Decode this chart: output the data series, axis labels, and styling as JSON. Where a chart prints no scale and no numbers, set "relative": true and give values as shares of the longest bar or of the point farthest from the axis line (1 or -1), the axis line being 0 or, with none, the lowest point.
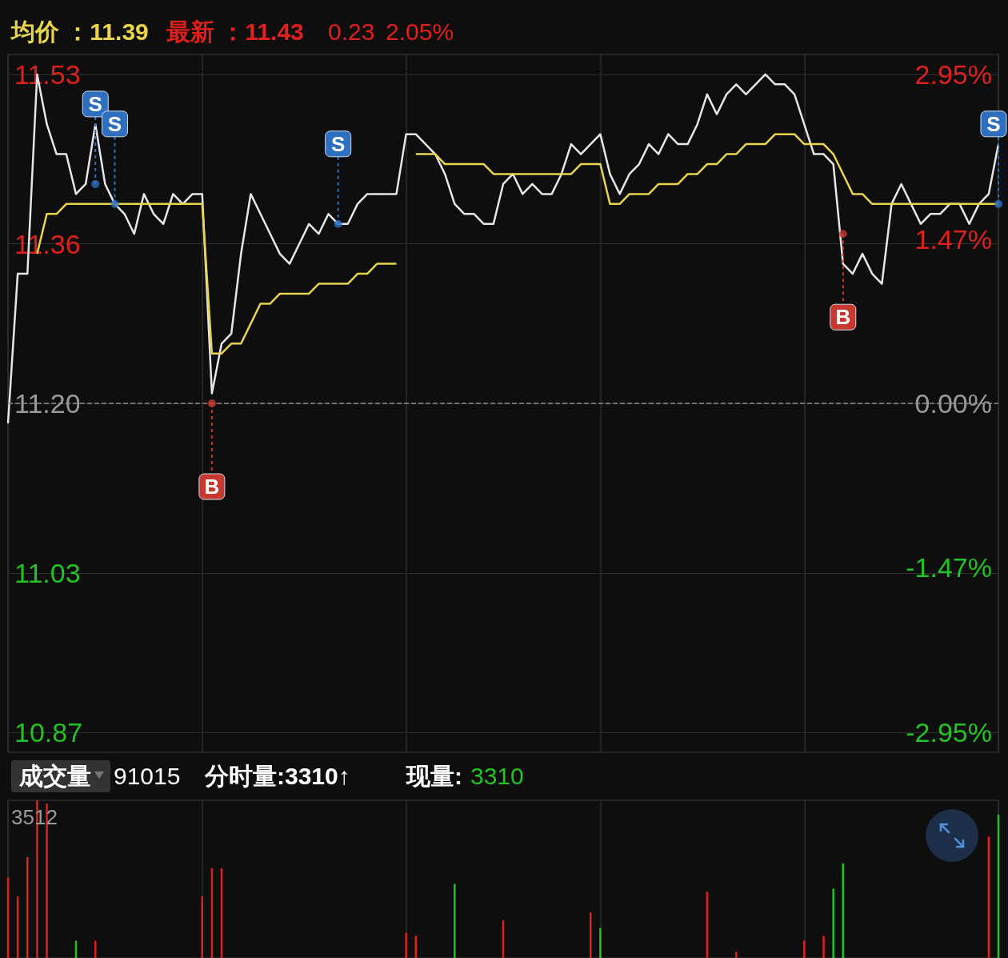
{
  "chart_data": [
    {
      "type": "line",
      "annotations": [
        "均价 ：11.39",
        "最新 ：11.43",
        "0.23",
        "2.05%"
      ],
      "categories": [
        null,
        null,
        null,
        null,
        null,
        null,
        null,
        null,
        null,
        null,
        null,
        null,
        null,
        null,
        null,
        null,
        null,
        null,
        null,
        null,
        null,
        null,
        null,
        null,
        null,
        null,
        null,
        null,
        null,
        null,
        null,
        null,
        null,
        null,
        null,
        null,
        null,
        null,
        null,
        null,
        null,
        null,
        null,
        null,
        null,
        null,
        null,
        null,
        null,
        null,
        null,
        null,
        null,
        null,
        null,
        null,
        null,
        null,
        null,
        null,
        null,
        null,
        null,
        null,
        null,
        null,
        null,
        null,
        null,
        null,
        null,
        null,
        null,
        null,
        null,
        null,
        null,
        null,
        null,
        null,
        null,
        null,
        null,
        null,
        null,
        null,
        null,
        null,
        null,
        null,
        null,
        null,
        null,
        null,
        null,
        null,
        null,
        null,
        null,
        null,
        null,
        null,
        null
      ],
      "series": [
        {
          "color": "#e6e6e6",
          "values": [
            11.18,
            11.33,
            11.33,
            11.53,
            11.48,
            11.45,
            11.45,
            11.41,
            11.42,
            11.48,
            11.42,
            11.4,
            11.39,
            11.37,
            11.41,
            11.39,
            11.38,
            11.41,
            11.4,
            11.41,
            11.41,
            11.21,
            11.26,
            11.27,
            11.35,
            11.41,
            11.39,
            11.37,
            11.35,
            11.34,
            11.36,
            11.38,
            11.37,
            11.39,
            11.38,
            11.38,
            11.4,
            11.41,
            11.41,
            11.41,
            11.41,
            11.47,
            11.47,
            11.46,
            11.45,
            11.43,
            11.4,
            11.39,
            11.39,
            11.38,
            11.38,
            11.42,
            11.43,
            11.41,
            11.42,
            11.41,
            11.41,
            11.43,
            11.46,
            11.45,
            11.46,
            11.47,
            11.43,
            11.41,
            11.43,
            11.44,
            11.46,
            11.45,
            11.47,
            11.46,
            11.46,
            11.48,
            11.51,
            11.49,
            11.51,
            11.52,
            11.51,
            11.52,
            11.53,
            11.52,
            11.52,
            11.51,
            11.48,
            11.45,
            11.45,
            11.44,
            11.34,
            11.33,
            11.35,
            11.33,
            11.32,
            11.4,
            11.42,
            11.4,
            11.38,
            11.39,
            11.39,
            11.4,
            11.4,
            11.38,
            11.4,
            11.41,
            11.46
          ]
        },
        {
          "color": "#e8d44d",
          "values": [
            null,
            null,
            null,
            11.35,
            11.39,
            11.39,
            11.4,
            11.4,
            11.4,
            11.4,
            11.4,
            11.4,
            11.4,
            11.4,
            11.4,
            11.4,
            11.4,
            11.4,
            11.4,
            11.4,
            11.4,
            11.25,
            11.25,
            11.26,
            11.26,
            11.28,
            11.3,
            11.3,
            11.31,
            11.31,
            11.31,
            11.31,
            11.32,
            11.32,
            11.32,
            11.32,
            11.33,
            11.33,
            11.34,
            11.34,
            11.34,
            null,
            11.45,
            11.45,
            11.45,
            11.44,
            11.44,
            11.44,
            11.44,
            11.44,
            11.43,
            11.43,
            11.43,
            11.43,
            11.43,
            11.43,
            11.43,
            11.43,
            11.43,
            11.44,
            11.44,
            11.44,
            11.4,
            11.4,
            11.41,
            11.41,
            11.41,
            11.42,
            11.42,
            11.42,
            11.43,
            11.43,
            11.44,
            11.44,
            11.45,
            11.45,
            11.46,
            11.46,
            11.46,
            11.47,
            11.47,
            11.47,
            11.46,
            11.46,
            11.46,
            11.45,
            11.43,
            11.41,
            11.41,
            11.4,
            11.4,
            11.4,
            11.4,
            11.4,
            11.4,
            11.4,
            11.4,
            11.4,
            11.4,
            11.4,
            11.4,
            11.4,
            11.4
          ]
        },
        {
          "type": "scatter",
          "marker": "circle",
          "values": [
            null,
            null,
            null,
            null,
            null,
            null,
            null,
            null,
            null,
            11.42,
            null,
            11.4,
            null,
            null,
            null,
            null,
            null,
            null,
            null,
            null,
            null,
            11.2,
            null,
            null,
            null,
            null,
            null,
            null,
            null,
            null,
            null,
            null,
            null,
            null,
            11.38,
            null,
            null,
            null,
            null,
            null,
            null,
            null,
            null,
            null,
            null,
            null,
            null,
            null,
            null,
            null,
            null,
            null,
            null,
            null,
            null,
            null,
            null,
            null,
            null,
            null,
            null,
            null,
            null,
            null,
            null,
            null,
            null,
            null,
            null,
            null,
            null,
            null,
            null,
            null,
            null,
            null,
            null,
            null,
            null,
            null,
            null,
            null,
            null,
            null,
            null,
            null,
            11.37,
            null,
            null,
            null,
            null,
            null,
            null,
            null,
            null,
            null,
            null,
            null,
            null,
            null,
            null,
            null,
            11.4
          ],
          "value_labels": [
            null,
            null,
            null,
            null,
            null,
            null,
            null,
            null,
            null,
            "S",
            null,
            "S",
            null,
            null,
            null,
            null,
            null,
            null,
            null,
            null,
            null,
            "B",
            null,
            null,
            null,
            null,
            null,
            null,
            null,
            null,
            null,
            null,
            null,
            null,
            "S",
            null,
            null,
            null,
            null,
            null,
            null,
            null,
            null,
            null,
            null,
            null,
            null,
            null,
            null,
            null,
            null,
            null,
            null,
            null,
            null,
            null,
            null,
            null,
            null,
            null,
            null,
            null,
            null,
            null,
            null,
            null,
            null,
            null,
            null,
            null,
            null,
            null,
            null,
            null,
            null,
            null,
            null,
            null,
            null,
            null,
            null,
            null,
            null,
            null,
            null,
            null,
            "B",
            null,
            null,
            null,
            null,
            null,
            null,
            null,
            null,
            null,
            null,
            null,
            null,
            null,
            null,
            null,
            "S"
          ],
          "colors": [
            null,
            null,
            null,
            null,
            null,
            null,
            null,
            null,
            null,
            "#2f6fc0",
            null,
            "#2f6fc0",
            null,
            null,
            null,
            null,
            null,
            null,
            null,
            null,
            null,
            "#c7392f",
            null,
            null,
            null,
            null,
            null,
            null,
            null,
            null,
            null,
            null,
            null,
            null,
            "#2f6fc0",
            null,
            null,
            null,
            null,
            null,
            null,
            null,
            null,
            null,
            null,
            null,
            null,
            null,
            null,
            null,
            null,
            null,
            null,
            null,
            null,
            null,
            null,
            null,
            null,
            null,
            null,
            null,
            null,
            null,
            null,
            null,
            null,
            null,
            null,
            null,
            null,
            null,
            null,
            null,
            null,
            null,
            null,
            null,
            null,
            null,
            null,
            null,
            null,
            null,
            null,
            null,
            "#c7392f",
            null,
            null,
            null,
            null,
            null,
            null,
            null,
            null,
            null,
            null,
            null,
            null,
            null,
            null,
            null,
            "#2f6fc0"
          ]
        }
      ],
      "ylim": [
        10.85,
        11.55
      ],
      "yticks": [
        10.87,
        11.03,
        {
          "value": 11.2,
          "label": "11.20"
        },
        11.36,
        11.53
      ],
      "y2lim": [
        -3.13,
        3.13
      ],
      "y2ticks": [
        {
          "value": -2.95,
          "label": "-2.95%"
        },
        {
          "value": -1.47,
          "label": "-1.47%"
        },
        {
          "value": 0,
          "label": "0.00%"
        },
        {
          "value": 1.47,
          "label": "1.47%"
        },
        {
          "value": 2.95,
          "label": "2.95%"
        }
      ],
      "ref_lines": [
        {
          "axis": "y",
          "value": 11.2,
          "line_style": "dashed",
          "color": "#8a8a8a"
        }
      ],
      "grid": true,
      "tick_labels": "y"
    },
    {
      "type": "bar",
      "relative": true,
      "annotations": [
        "成交量",
        "91015",
        "分时量:3310↑",
        "现量:",
        "3310",
        "3512"
      ],
      "categories": [
        null,
        null,
        null,
        null,
        null,
        null,
        null,
        null,
        null,
        null,
        null,
        null,
        null,
        null,
        null,
        null,
        null,
        null,
        null,
        null,
        null,
        null,
        null,
        null,
        null,
        null,
        null,
        null,
        null,
        null,
        null,
        null,
        null,
        null,
        null,
        null,
        null,
        null,
        null,
        null,
        null,
        null,
        null,
        null,
        null,
        null,
        null,
        null,
        null,
        null,
        null,
        null,
        null,
        null,
        null,
        null,
        null,
        null,
        null,
        null,
        null,
        null,
        null,
        null,
        null,
        null,
        null,
        null,
        null,
        null,
        null,
        null,
        null,
        null,
        null,
        null,
        null,
        null,
        null,
        null,
        null,
        null,
        null,
        null,
        null,
        null,
        null,
        null,
        null,
        null,
        null,
        null,
        null,
        null,
        null,
        null,
        null,
        null,
        null,
        null,
        null,
        null,
        null
      ],
      "values": [
        0.51,
        0.39,
        0.64,
        1,
        0.98,
        null,
        null,
        0.11,
        null,
        0.11,
        null,
        null,
        null,
        null,
        null,
        null,
        null,
        null,
        null,
        null,
        0.39,
        0.57,
        0.57,
        null,
        null,
        null,
        null,
        null,
        null,
        null,
        null,
        null,
        null,
        null,
        null,
        null,
        null,
        null,
        null,
        null,
        null,
        0.16,
        0.14,
        null,
        null,
        null,
        0.47,
        null,
        null,
        null,
        null,
        0.24,
        null,
        null,
        null,
        null,
        null,
        null,
        null,
        null,
        0.29,
        0.19,
        null,
        null,
        null,
        null,
        null,
        null,
        null,
        null,
        null,
        null,
        0.42,
        null,
        null,
        0.04,
        null,
        null,
        null,
        null,
        null,
        null,
        0.11,
        null,
        0.14,
        0.44,
        0.6,
        null,
        null,
        null,
        null,
        null,
        null,
        null,
        null,
        null,
        null,
        null,
        null,
        null,
        null,
        0.77,
        0.91
      ],
      "colors": [
        "#e0201c",
        "#e0201c",
        "#e0201c",
        "#e0201c",
        "#e0201c",
        null,
        null,
        "#22c322",
        null,
        "#e0201c",
        null,
        null,
        null,
        null,
        null,
        null,
        null,
        null,
        null,
        null,
        "#e0201c",
        "#e0201c",
        "#e0201c",
        null,
        null,
        null,
        null,
        null,
        null,
        null,
        null,
        null,
        null,
        null,
        null,
        null,
        null,
        null,
        null,
        null,
        null,
        "#e0201c",
        "#e0201c",
        null,
        null,
        null,
        "#22c322",
        null,
        null,
        null,
        null,
        "#e0201c",
        null,
        null,
        null,
        null,
        null,
        null,
        null,
        null,
        "#e0201c",
        "#22c322",
        null,
        null,
        null,
        null,
        null,
        null,
        null,
        null,
        null,
        null,
        "#e0201c",
        null,
        null,
        "#e0201c",
        null,
        null,
        null,
        null,
        null,
        null,
        "#e0201c",
        null,
        "#e0201c",
        "#22c322",
        "#22c322",
        null,
        null,
        null,
        null,
        null,
        null,
        null,
        null,
        null,
        null,
        null,
        null,
        null,
        null,
        "#e0201c",
        "#22c322"
      ],
      "grid": "x",
      "tick_labels": false
    }
  ]
}
